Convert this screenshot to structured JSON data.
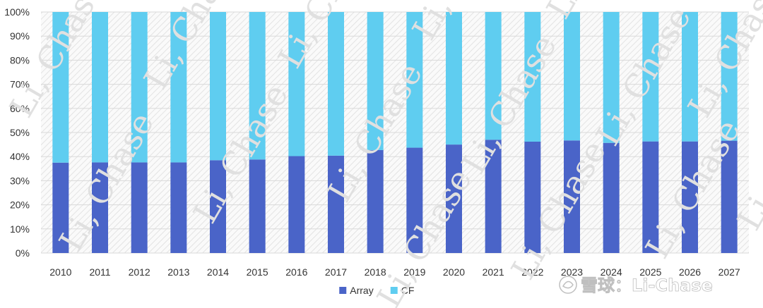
{
  "chart_data": {
    "type": "bar",
    "stacked": true,
    "percent": true,
    "categories": [
      "2010",
      "2011",
      "2012",
      "2013",
      "2014",
      "2015",
      "2016",
      "2017",
      "2018",
      "2019",
      "2020",
      "2021",
      "2022",
      "2023",
      "2024",
      "2025",
      "2026",
      "2027"
    ],
    "series": [
      {
        "name": "Array",
        "color": "#4a64c8",
        "values": [
          37.5,
          37.6,
          37.6,
          37.6,
          38.5,
          38.8,
          40.2,
          40.4,
          42.7,
          43.7,
          45.0,
          47.0,
          46.2,
          46.7,
          45.7,
          46.3,
          46.3,
          46.6
        ]
      },
      {
        "name": "CF",
        "color": "#5fcdf0",
        "values": [
          62.5,
          62.4,
          62.4,
          62.4,
          61.5,
          61.2,
          59.8,
          59.6,
          57.3,
          56.3,
          55.0,
          53.0,
          53.8,
          53.3,
          54.3,
          53.7,
          53.7,
          53.4
        ]
      }
    ],
    "yticks": [
      "0%",
      "10%",
      "20%",
      "30%",
      "40%",
      "50%",
      "60%",
      "70%",
      "80%",
      "90%",
      "100%"
    ],
    "ylim": [
      0,
      100
    ],
    "grid": true,
    "legend_position": "bottom-center",
    "title": "",
    "xlabel": "",
    "ylabel": ""
  },
  "watermark": {
    "text": "Li, Chase",
    "brand": "雪球：Li-Chase"
  }
}
